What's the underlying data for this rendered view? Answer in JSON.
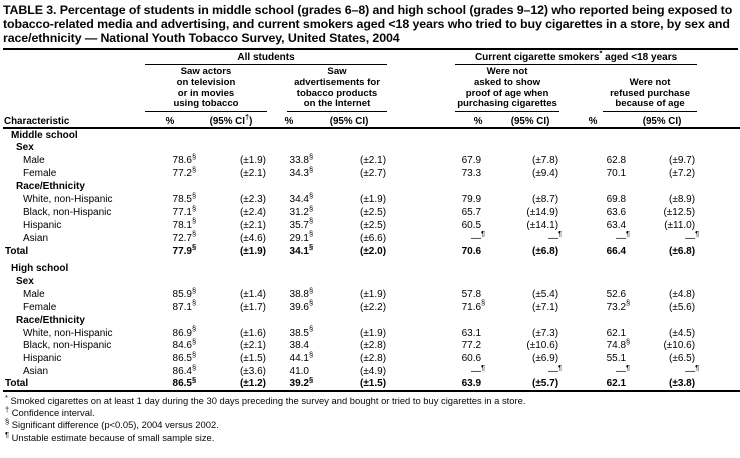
{
  "title": "TABLE 3. Percentage of students in middle school (grades 6–8) and high school (grades 9–12) who reported being exposed to tobacco-related media and advertising, and current smokers aged <18 years who tried to buy cigarettes in a store, by sex and race/ethnicity — National Youth Tobacco Survey, United States, 2004",
  "table": {
    "characteristic_header": "Characteristic",
    "spanners": [
      {
        "pre": "All students",
        "sup": "",
        "post": ""
      },
      {
        "pre": "Current cigarette smokers",
        "sup": "*",
        "post": " aged <18 years"
      }
    ],
    "sub_spanners": [
      {
        "lines": [
          "Saw actors",
          "on television",
          "or in movies",
          "using tobacco"
        ]
      },
      {
        "lines": [
          "Saw",
          "advertisements for",
          "tobacco products",
          "on the Internet"
        ]
      },
      {
        "lines": [
          "Were not",
          "asked to show",
          "proof of age when",
          "purchasing cigarettes"
        ]
      },
      {
        "lines": [
          "Were not",
          "refused purchase",
          "because of age"
        ]
      }
    ],
    "col_headers": [
      {
        "pct": "%",
        "ci_pre": "(95% CI",
        "ci_sup": "†",
        "ci_post": ")"
      },
      {
        "pct": "%",
        "ci_pre": "(95% CI",
        "ci_sup": "",
        "ci_post": ")"
      },
      {
        "pct": "%",
        "ci_pre": "(95% CI",
        "ci_sup": "",
        "ci_post": ")"
      },
      {
        "pct": "%",
        "ci_pre": "(95% CI",
        "ci_sup": "",
        "ci_post": ")"
      }
    ],
    "rows": [
      {
        "type": "section",
        "label": "Middle school"
      },
      {
        "type": "subsection",
        "label": "Sex"
      },
      {
        "type": "data",
        "label": "Male",
        "cells": [
          {
            "v": "78.6",
            "s": "§"
          },
          {
            "v": "(±1.9)"
          },
          {
            "v": "33.8",
            "s": "§"
          },
          {
            "v": "(±2.1)"
          },
          {
            "v": "67.9"
          },
          {
            "v": "(±7.8)"
          },
          {
            "v": "62.8"
          },
          {
            "v": "(±9.7)"
          }
        ]
      },
      {
        "type": "data",
        "label": "Female",
        "cells": [
          {
            "v": "77.2",
            "s": "§"
          },
          {
            "v": "(±2.1)"
          },
          {
            "v": "34.3",
            "s": "§"
          },
          {
            "v": "(±2.7)"
          },
          {
            "v": "73.3"
          },
          {
            "v": "(±9.4)"
          },
          {
            "v": "70.1"
          },
          {
            "v": "(±7.2)"
          }
        ]
      },
      {
        "type": "subsection",
        "label": "Race/Ethnicity"
      },
      {
        "type": "data",
        "label": "White, non-Hispanic",
        "cells": [
          {
            "v": "78.5",
            "s": "§"
          },
          {
            "v": "(±2.3)"
          },
          {
            "v": "34.4",
            "s": "§"
          },
          {
            "v": "(±1.9)"
          },
          {
            "v": "79.9"
          },
          {
            "v": "(±8.7)"
          },
          {
            "v": "69.8"
          },
          {
            "v": "(±8.9)"
          }
        ]
      },
      {
        "type": "data",
        "label": "Black, non-Hispanic",
        "cells": [
          {
            "v": "77.1",
            "s": "§"
          },
          {
            "v": "(±2.4)"
          },
          {
            "v": "31.2",
            "s": "§"
          },
          {
            "v": "(±2.5)"
          },
          {
            "v": "65.7"
          },
          {
            "v": "(±14.9)"
          },
          {
            "v": "63.6"
          },
          {
            "v": "(±12.5)"
          }
        ]
      },
      {
        "type": "data",
        "label": "Hispanic",
        "cells": [
          {
            "v": "78.1",
            "s": "§"
          },
          {
            "v": "(±2.1)"
          },
          {
            "v": "35.7",
            "s": "§"
          },
          {
            "v": "(±2.5)"
          },
          {
            "v": "60.5"
          },
          {
            "v": "(±14.1)"
          },
          {
            "v": "63.4"
          },
          {
            "v": "(±11.0)"
          }
        ]
      },
      {
        "type": "data",
        "label": "Asian",
        "cells": [
          {
            "v": "72.7",
            "s": "§"
          },
          {
            "v": "(±4.6)"
          },
          {
            "v": "29.1",
            "s": "§"
          },
          {
            "v": "(±6.6)"
          },
          {
            "v": "—",
            "s": "¶"
          },
          {
            "v": "—",
            "s": "¶"
          },
          {
            "v": "—",
            "s": "¶"
          },
          {
            "v": "—",
            "s": "¶"
          }
        ]
      },
      {
        "type": "total",
        "label": "Total",
        "cells": [
          {
            "v": "77.9",
            "s": "§"
          },
          {
            "v": "(±1.9)"
          },
          {
            "v": "34.1",
            "s": "§"
          },
          {
            "v": "(±2.0)"
          },
          {
            "v": "70.6"
          },
          {
            "v": "(±6.8)"
          },
          {
            "v": "66.4"
          },
          {
            "v": "(±6.8)"
          }
        ]
      },
      {
        "type": "section",
        "label": "High school",
        "gap_before": true
      },
      {
        "type": "subsection",
        "label": "Sex"
      },
      {
        "type": "data",
        "label": "Male",
        "cells": [
          {
            "v": "85.9",
            "s": "§"
          },
          {
            "v": "(±1.4)"
          },
          {
            "v": "38.8",
            "s": "§"
          },
          {
            "v": "(±1.9)"
          },
          {
            "v": "57.8"
          },
          {
            "v": "(±5.4)"
          },
          {
            "v": "52.6"
          },
          {
            "v": "(±4.8)"
          }
        ]
      },
      {
        "type": "data",
        "label": "Female",
        "cells": [
          {
            "v": "87.1",
            "s": "§"
          },
          {
            "v": "(±1.7)"
          },
          {
            "v": "39.6",
            "s": "§"
          },
          {
            "v": "(±2.2)"
          },
          {
            "v": "71.6",
            "s": "§"
          },
          {
            "v": "(±7.1)"
          },
          {
            "v": "73.2",
            "s": "§"
          },
          {
            "v": "(±5.6)"
          }
        ]
      },
      {
        "type": "subsection",
        "label": "Race/Ethnicity"
      },
      {
        "type": "data",
        "label": "White, non-Hispanic",
        "cells": [
          {
            "v": "86.9",
            "s": "§"
          },
          {
            "v": "(±1.6)"
          },
          {
            "v": "38.5",
            "s": "§"
          },
          {
            "v": "(±1.9)"
          },
          {
            "v": "63.1"
          },
          {
            "v": "(±7.3)"
          },
          {
            "v": "62.1"
          },
          {
            "v": "(±4.5)"
          }
        ]
      },
      {
        "type": "data",
        "label": "Black, non-Hispanic",
        "cells": [
          {
            "v": "84.6",
            "s": "§"
          },
          {
            "v": "(±2.1)"
          },
          {
            "v": "38.4"
          },
          {
            "v": "(±2.8)"
          },
          {
            "v": "77.2"
          },
          {
            "v": "(±10.6)"
          },
          {
            "v": "74.8",
            "s": "§"
          },
          {
            "v": "(±10.6)"
          }
        ]
      },
      {
        "type": "data",
        "label": "Hispanic",
        "cells": [
          {
            "v": "86.5",
            "s": "§"
          },
          {
            "v": "(±1.5)"
          },
          {
            "v": "44.1",
            "s": "§"
          },
          {
            "v": "(±2.8)"
          },
          {
            "v": "60.6"
          },
          {
            "v": "(±6.9)"
          },
          {
            "v": "55.1"
          },
          {
            "v": "(±6.5)"
          }
        ]
      },
      {
        "type": "data",
        "label": "Asian",
        "cells": [
          {
            "v": "86.4",
            "s": "§"
          },
          {
            "v": "(±3.6)"
          },
          {
            "v": "41.0"
          },
          {
            "v": "(±4.9)"
          },
          {
            "v": "—",
            "s": "¶"
          },
          {
            "v": "—",
            "s": "¶"
          },
          {
            "v": "—",
            "s": "¶"
          },
          {
            "v": "—",
            "s": "¶"
          }
        ]
      },
      {
        "type": "total",
        "label": "Total",
        "cells": [
          {
            "v": "86.5",
            "s": "§"
          },
          {
            "v": "(±1.2)"
          },
          {
            "v": "39.2",
            "s": "§"
          },
          {
            "v": "(±1.5)"
          },
          {
            "v": "63.9"
          },
          {
            "v": "(±5.7)"
          },
          {
            "v": "62.1"
          },
          {
            "v": "(±3.8)"
          }
        ]
      }
    ]
  },
  "footnotes": [
    {
      "sym": "*",
      "text": "Smoked cigarettes on at least 1 day during the 30 days preceding the survey and bought or tried to buy cigarettes in a store."
    },
    {
      "sym": "†",
      "text": "Confidence interval."
    },
    {
      "sym": "§",
      "text": "Significant difference (p<0.05), 2004 versus 2002."
    },
    {
      "sym": "¶",
      "text": "Unstable estimate because of small sample size."
    }
  ]
}
